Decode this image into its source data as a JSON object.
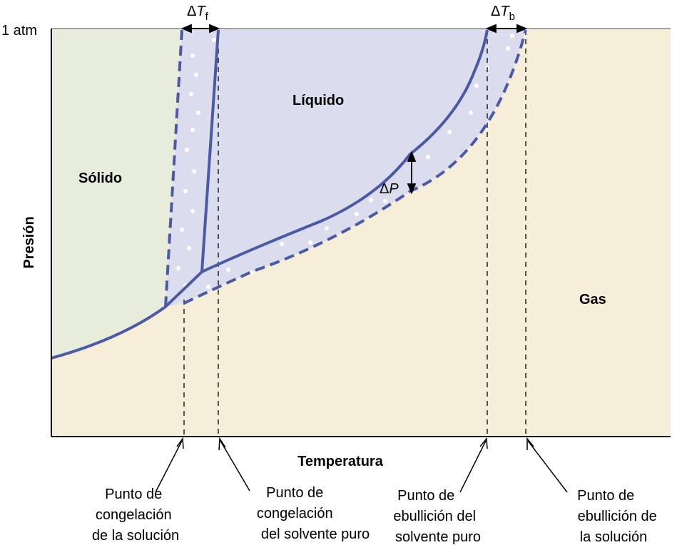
{
  "pressure_label": "1 atm",
  "axes": {
    "y_label": "Presión",
    "x_label": "Temperatura"
  },
  "regions": {
    "solid": "Sólido",
    "liquid": "Líquido",
    "gas": "Gas"
  },
  "deltas": {
    "tf": {
      "delta": "Δ",
      "symbol": "T",
      "subscript": "f"
    },
    "tb": {
      "delta": "Δ",
      "symbol": "T",
      "subscript": "b"
    },
    "p": {
      "delta": "Δ",
      "symbol": "P"
    }
  },
  "annotations": {
    "freeze_solution": [
      "Punto de",
      "congelación",
      "de la solución"
    ],
    "freeze_solvent": [
      "Punto de",
      "congelación",
      "del solvente puro"
    ],
    "boil_solvent": [
      "Punto de",
      "ebullición del",
      "solvente puro"
    ],
    "boil_solution": [
      "Punto de",
      "ebullición de",
      "la solución"
    ]
  },
  "colors": {
    "solid_fill": "#e8eddb",
    "gas_fill": "#f6eed9",
    "liquid_fill": "#dcdcef",
    "curve": "#4a5aa7"
  }
}
